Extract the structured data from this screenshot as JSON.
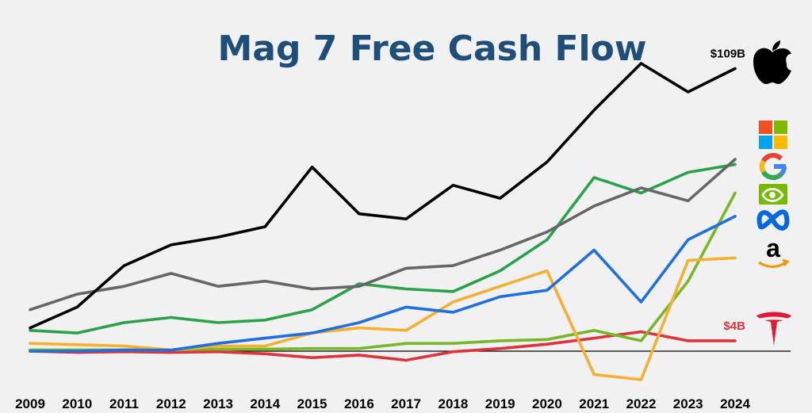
{
  "chart_data": {
    "type": "line",
    "title": "Mag 7 Free Cash Flow",
    "xlabel": "",
    "ylabel": "",
    "unit": "$B",
    "x": [
      "2009",
      "2010",
      "2011",
      "2012",
      "2013",
      "2014",
      "2015",
      "2016",
      "2017",
      "2018",
      "2019",
      "2020",
      "2021",
      "2022",
      "2023",
      "2024"
    ],
    "ylim": [
      -22,
      115
    ],
    "grid": false,
    "legend": "logos at right end of lines",
    "zero_line": true,
    "series": [
      {
        "logo": "apple-icon",
        "color": "#000000",
        "values": [
          9,
          17,
          33,
          41,
          44,
          48,
          71,
          53,
          51,
          64,
          59,
          73,
          93,
          111,
          100,
          109
        ]
      },
      {
        "logo": "microsoft-icon",
        "color": "#666666",
        "values": [
          16,
          22,
          25,
          30,
          25,
          27,
          24,
          25,
          32,
          33,
          39,
          46,
          56,
          63,
          58,
          74
        ]
      },
      {
        "logo": "google-icon",
        "color": "#2aa24a",
        "values": [
          8,
          7,
          11,
          13,
          11,
          12,
          16,
          26,
          24,
          23,
          31,
          43,
          67,
          61,
          69,
          72
        ]
      },
      {
        "logo": "nvidia-icon",
        "color": "#76b82a",
        "values": [
          0.5,
          0.5,
          0.5,
          0.5,
          0.8,
          0.8,
          1,
          1,
          3,
          3,
          4,
          4.5,
          8,
          4,
          27,
          61
        ]
      },
      {
        "logo": "meta-icon",
        "color": "#1f6fe0",
        "values": [
          0,
          0,
          0.5,
          0.4,
          3,
          5,
          7,
          11,
          17,
          15,
          21,
          23.5,
          39,
          19,
          43,
          52
        ]
      },
      {
        "logo": "amazon-icon",
        "color": "#f5b031",
        "values": [
          3,
          2.5,
          2,
          0.5,
          2,
          2,
          7,
          9,
          8,
          19,
          25,
          31,
          -9,
          -11,
          35,
          36
        ]
      },
      {
        "logo": "tesla-icon",
        "color": "#e0323a",
        "values": [
          0,
          -0.5,
          -0.2,
          -0.5,
          -0.2,
          -1,
          -2.5,
          -1.5,
          -3.5,
          -0.2,
          1,
          2.7,
          5,
          7.5,
          4,
          4
        ]
      }
    ],
    "annotations": [
      {
        "text": "$109B",
        "series": "apple-icon"
      },
      {
        "text": "$4B",
        "series": "tesla-icon"
      }
    ]
  }
}
